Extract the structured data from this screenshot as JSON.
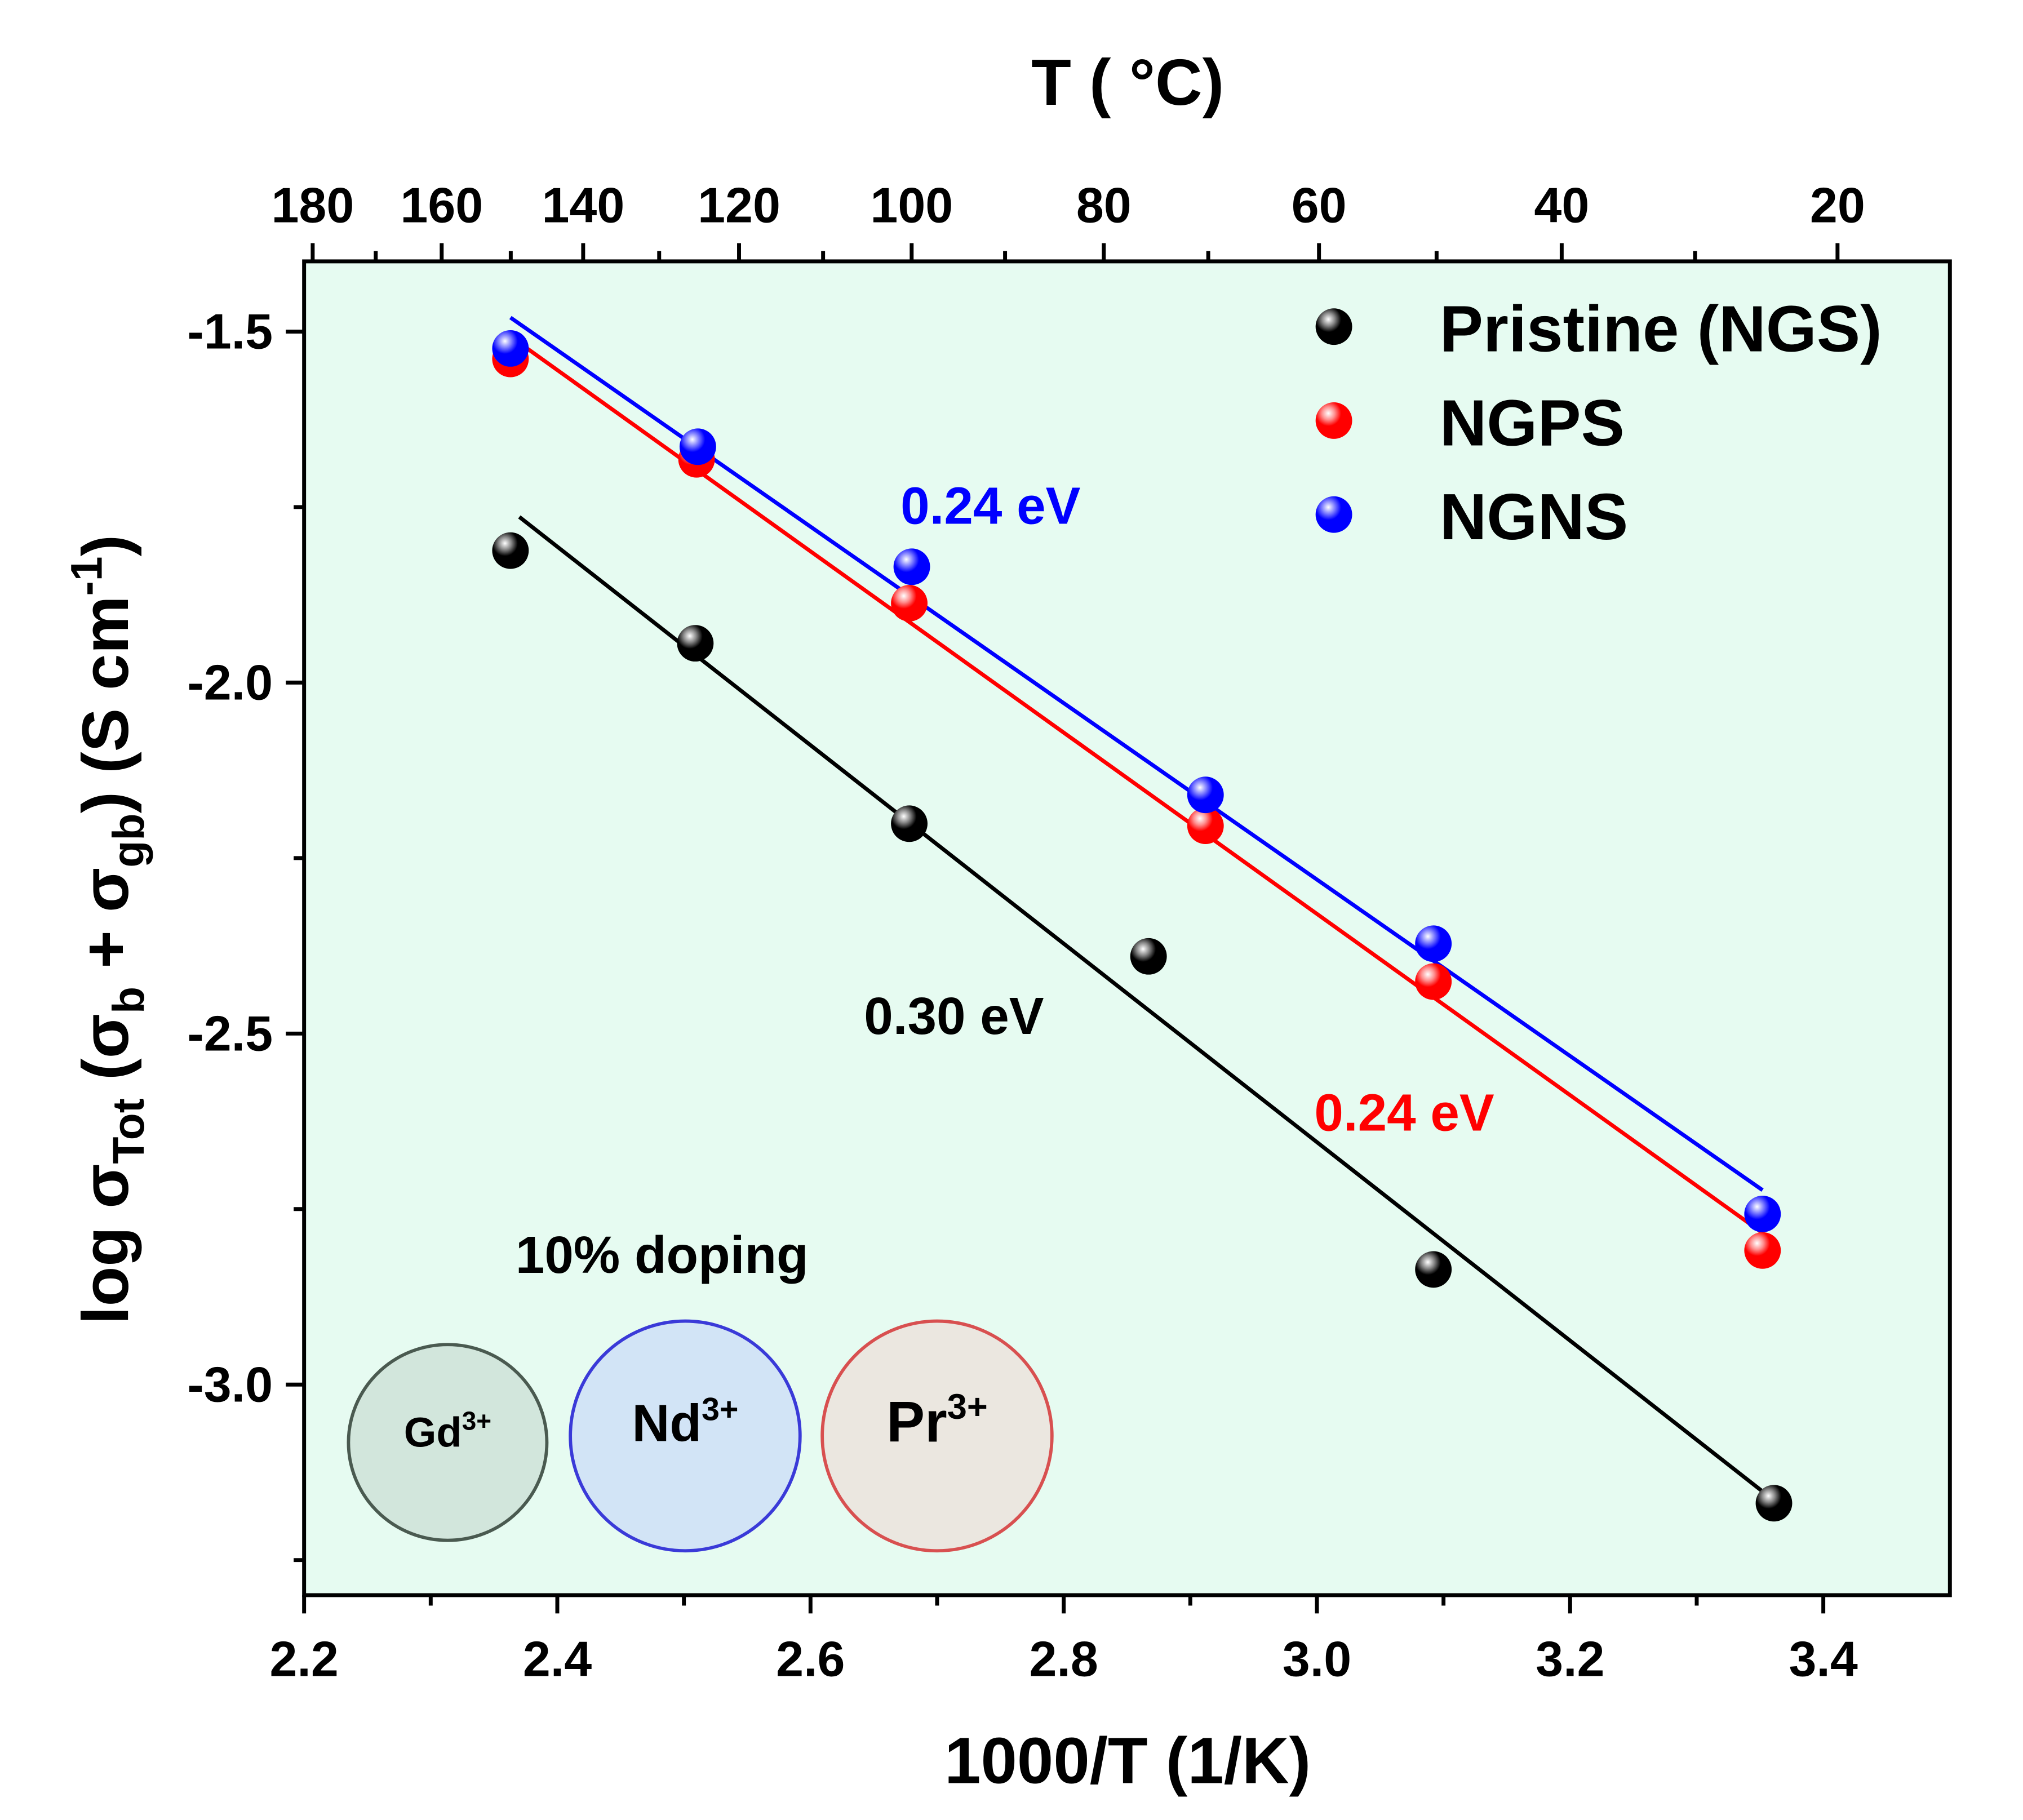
{
  "chart_data": {
    "type": "scatter",
    "title": "",
    "xlabel": "1000/T (1/K)",
    "top_xlabel": "T ( °C)",
    "ylabel": {
      "main": "log σ",
      "sub1": "Tot",
      "mid1": " (σ",
      "sub2": "b",
      "mid2": " + σ",
      "sub3": "gb",
      "mid3": ") (S cm",
      "sup": "-1",
      "end": ")"
    },
    "xlim": [
      2.2,
      3.5
    ],
    "ylim": [
      -3.3,
      -1.4
    ],
    "x_ticks": [
      2.2,
      2.4,
      2.6,
      2.8,
      3.0,
      3.2,
      3.4
    ],
    "x_tick_labels": [
      "2.2",
      "2.4",
      "2.6",
      "2.8",
      "3.0",
      "3.2",
      "3.4"
    ],
    "y_ticks": [
      -1.5,
      -2.0,
      -2.5,
      -3.0
    ],
    "y_tick_labels": [
      "-1.5",
      "-2.0",
      "-2.5",
      "-3.0"
    ],
    "top_ticks_celsius": [
      180,
      160,
      140,
      120,
      100,
      80,
      60,
      40,
      20
    ],
    "top_tick_labels": [
      "180",
      "160",
      "140",
      "120",
      "100",
      "80",
      "60",
      "40",
      "20"
    ],
    "grid": false,
    "background": "#e6fbf1",
    "legend_position": "top-right",
    "series": [
      {
        "name": "Pristine (NGS)",
        "color": "#000000",
        "x": [
          2.363,
          2.509,
          2.678,
          2.867,
          3.092,
          3.361
        ],
        "y": [
          -1.812,
          -1.944,
          -2.201,
          -2.39,
          -2.836,
          -3.169
        ],
        "fit": {
          "x": [
            2.37,
            3.361
          ],
          "y": [
            -1.764,
            -3.165
          ]
        }
      },
      {
        "name": "NGPS",
        "color": "#ff0000",
        "x": [
          2.363,
          2.51,
          2.678,
          2.912,
          3.092,
          3.352
        ],
        "y": [
          -1.539,
          -1.682,
          -1.887,
          -2.204,
          -2.426,
          -2.809
        ],
        "fit": {
          "x": [
            2.363,
            3.352
          ],
          "y": [
            -1.507,
            -2.784
          ]
        }
      },
      {
        "name": "NGNS",
        "color": "#0000ff",
        "x": [
          2.363,
          2.511,
          2.68,
          2.912,
          3.092,
          3.352
        ],
        "y": [
          -1.524,
          -1.664,
          -1.835,
          -2.16,
          -2.372,
          -2.757
        ],
        "fit": {
          "x": [
            2.363,
            3.352
          ],
          "y": [
            -1.48,
            -2.723
          ]
        }
      }
    ],
    "annotations": [
      {
        "text": "0.24 eV",
        "color": "#0000ff"
      },
      {
        "text": "0.30 eV",
        "color": "#000000"
      },
      {
        "text": "0.24 eV",
        "color": "#ff0000"
      },
      {
        "text": "10% doping",
        "color": "#000000"
      }
    ],
    "ions": [
      {
        "symbol": "Gd",
        "charge": "3+",
        "fill": "#d2e6dc",
        "stroke": "#4a5a50"
      },
      {
        "symbol": "Nd",
        "charge": "3+",
        "fill": "#d2e4f6",
        "stroke": "#3a3ad8"
      },
      {
        "symbol": "Pr",
        "charge": "3+",
        "fill": "#ebe7e0",
        "stroke": "#d85050"
      }
    ]
  }
}
